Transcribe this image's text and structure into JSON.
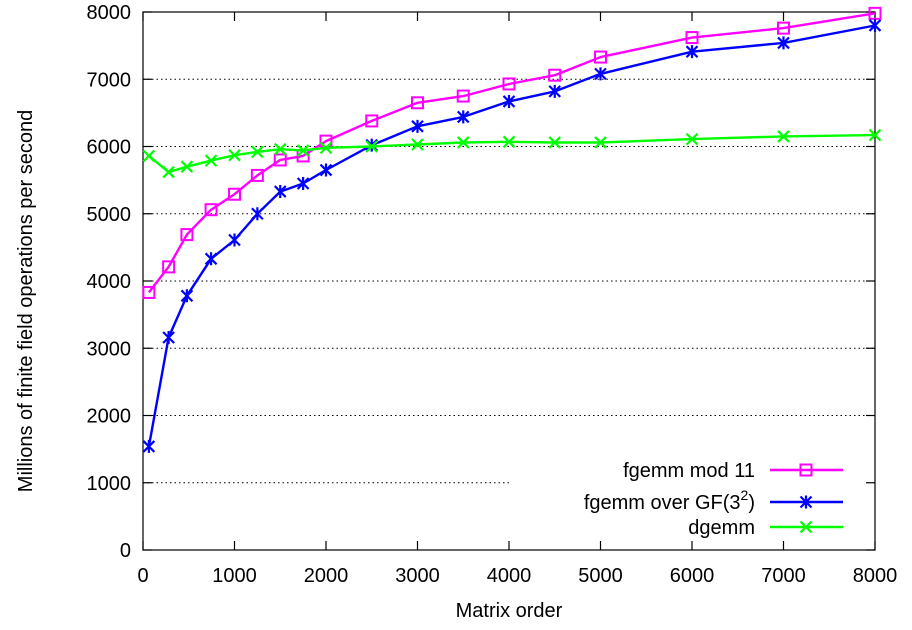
{
  "chart_data": {
    "type": "line",
    "title": "",
    "xlabel": "Matrix order",
    "ylabel": "Millions of finite field operations per second",
    "xlim": [
      0,
      8000
    ],
    "ylim": [
      0,
      8000
    ],
    "xticks": [
      0,
      1000,
      2000,
      3000,
      4000,
      5000,
      6000,
      7000,
      8000
    ],
    "yticks": [
      0,
      1000,
      2000,
      3000,
      4000,
      5000,
      6000,
      7000,
      8000
    ],
    "xtick_labels": [
      "0",
      "1000",
      "2000",
      "3000",
      "4000",
      "5000",
      "6000",
      "7000",
      "8000"
    ],
    "ytick_labels": [
      "0",
      "1000",
      "2000",
      "3000",
      "4000",
      "5000",
      "6000",
      "7000",
      "8000"
    ],
    "grid": "horizontal dotted",
    "legend_position": "bottom-right",
    "series": [
      {
        "name": "fgemm mod 11",
        "legend_main": "fgemm mod 11",
        "legend_sup": "",
        "legend_tail": "",
        "color": "#ff00ff",
        "marker": "square",
        "x": [
          64,
          280,
          480,
          744,
          1000,
          1250,
          1500,
          1750,
          2000,
          2500,
          3000,
          3500,
          4000,
          4500,
          5000,
          6000,
          7000,
          8000
        ],
        "y": [
          3830,
          4210,
          4690,
          5060,
          5290,
          5570,
          5800,
          5860,
          6080,
          6380,
          6650,
          6750,
          6930,
          7060,
          7330,
          7620,
          7760,
          7980
        ]
      },
      {
        "name": "fgemm over GF(3^2)",
        "legend_main": "fgemm over GF(3",
        "legend_sup": "2",
        "legend_tail": ")",
        "color": "#0000ff",
        "marker": "star",
        "x": [
          64,
          280,
          480,
          744,
          1000,
          1250,
          1500,
          1750,
          2000,
          2500,
          3000,
          3500,
          4000,
          4500,
          5000,
          6000,
          7000,
          8000
        ],
        "y": [
          1540,
          3160,
          3780,
          4330,
          4610,
          5000,
          5330,
          5450,
          5650,
          6020,
          6300,
          6440,
          6670,
          6820,
          7080,
          7410,
          7540,
          7800
        ]
      },
      {
        "name": "dgemm",
        "legend_main": "dgemm",
        "legend_sup": "",
        "legend_tail": "",
        "color": "#00ff00",
        "marker": "x",
        "x": [
          64,
          280,
          480,
          744,
          1000,
          1250,
          1500,
          1750,
          2000,
          2500,
          3000,
          3500,
          4000,
          4500,
          5000,
          6000,
          7000,
          8000
        ],
        "y": [
          5860,
          5620,
          5700,
          5790,
          5870,
          5920,
          5960,
          5940,
          5980,
          6000,
          6030,
          6060,
          6070,
          6060,
          6060,
          6110,
          6150,
          6170
        ]
      }
    ]
  }
}
